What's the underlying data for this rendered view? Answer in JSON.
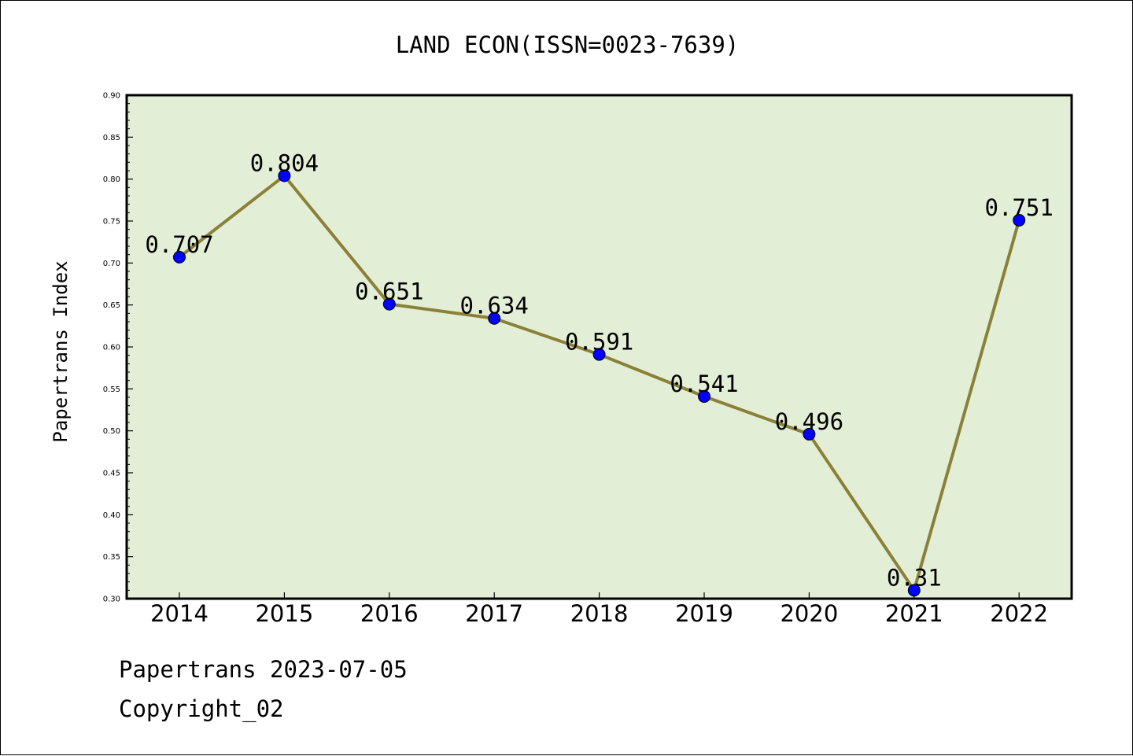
{
  "chart_data": {
    "type": "line",
    "title": "LAND ECON(ISSN=0023-7639)",
    "ylabel": "Papertrans Index",
    "xlabel": "",
    "categories": [
      "2014",
      "2015",
      "2016",
      "2017",
      "2018",
      "2019",
      "2020",
      "2021",
      "2022"
    ],
    "series": [
      {
        "values": [
          0.707,
          0.804,
          0.651,
          0.634,
          0.591,
          0.541,
          0.496,
          0.31,
          0.751
        ],
        "data_labels": [
          "0.707",
          "0.804",
          "0.651",
          "0.634",
          "0.591",
          "0.541",
          "0.496",
          "0.31",
          "0.751"
        ]
      }
    ],
    "ylim": [
      0.3,
      0.9
    ],
    "yticks": [
      "0.30",
      "0.35",
      "0.40",
      "0.45",
      "0.50",
      "0.55",
      "0.60",
      "0.65",
      "0.70",
      "0.75",
      "0.80",
      "0.85",
      "0.90"
    ],
    "grid": false,
    "colors": {
      "plot_background": "#e2efd6",
      "line": "#8b8038",
      "marker": "#0000ff"
    }
  },
  "footer": {
    "line1": "Papertrans 2023-07-05",
    "line2": "Copyright_02"
  }
}
